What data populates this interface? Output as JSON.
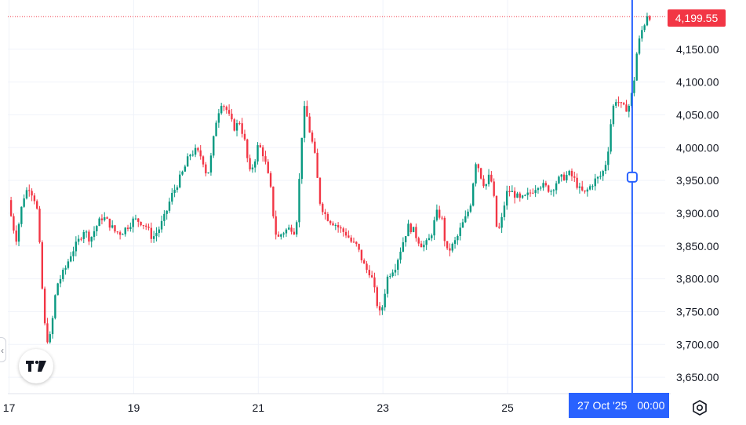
{
  "chart_data": {
    "type": "candlestick",
    "title": "",
    "xlabel": "",
    "ylabel": "",
    "y_range": [
      3625,
      4225
    ],
    "y_ticks": [
      3650,
      3700,
      3750,
      3800,
      3850,
      3900,
      3950,
      4000,
      4050,
      4100,
      4150
    ],
    "y_tick_labels": [
      "3,650.00",
      "3,700.00",
      "3,750.00",
      "3,800.00",
      "3,850.00",
      "3,900.00",
      "3,950.00",
      "4,000.00",
      "4,050.00",
      "4,100.00",
      "4,150.00"
    ],
    "x_tick_labels": [
      "17",
      "19",
      "21",
      "23",
      "25"
    ],
    "x_tick_days": [
      17,
      19,
      21,
      23,
      25
    ],
    "x_range_days": [
      16.98,
      27.53
    ],
    "grid": true,
    "up_color": "#089981",
    "down_color": "#f23645",
    "close_path": [
      [
        16.99,
        3920
      ],
      [
        17.05,
        3885
      ],
      [
        17.12,
        3860
      ],
      [
        17.18,
        3900
      ],
      [
        17.25,
        3930
      ],
      [
        17.32,
        3940
      ],
      [
        17.4,
        3925
      ],
      [
        17.46,
        3900
      ],
      [
        17.52,
        3800
      ],
      [
        17.58,
        3720
      ],
      [
        17.64,
        3700
      ],
      [
        17.7,
        3740
      ],
      [
        17.76,
        3790
      ],
      [
        17.82,
        3800
      ],
      [
        17.9,
        3815
      ],
      [
        18.0,
        3840
      ],
      [
        18.1,
        3855
      ],
      [
        18.2,
        3875
      ],
      [
        18.3,
        3860
      ],
      [
        18.4,
        3880
      ],
      [
        18.5,
        3895
      ],
      [
        18.6,
        3885
      ],
      [
        18.7,
        3872
      ],
      [
        18.8,
        3870
      ],
      [
        18.9,
        3880
      ],
      [
        19.0,
        3890
      ],
      [
        19.1,
        3888
      ],
      [
        19.2,
        3880
      ],
      [
        19.3,
        3862
      ],
      [
        19.4,
        3875
      ],
      [
        19.5,
        3895
      ],
      [
        19.6,
        3925
      ],
      [
        19.7,
        3945
      ],
      [
        19.8,
        3965
      ],
      [
        19.9,
        3990
      ],
      [
        20.0,
        3995
      ],
      [
        20.1,
        3985
      ],
      [
        20.18,
        3955
      ],
      [
        20.25,
        3990
      ],
      [
        20.32,
        4040
      ],
      [
        20.4,
        4070
      ],
      [
        20.48,
        4060
      ],
      [
        20.56,
        4040
      ],
      [
        20.62,
        4030
      ],
      [
        20.7,
        4040
      ],
      [
        20.78,
        4010
      ],
      [
        20.86,
        3960
      ],
      [
        20.94,
        3980
      ],
      [
        21.0,
        4005
      ],
      [
        21.08,
        3990
      ],
      [
        21.14,
        3965
      ],
      [
        21.2,
        3935
      ],
      [
        21.26,
        3880
      ],
      [
        21.3,
        3860
      ],
      [
        21.38,
        3870
      ],
      [
        21.46,
        3875
      ],
      [
        21.54,
        3878
      ],
      [
        21.6,
        3870
      ],
      [
        21.66,
        3955
      ],
      [
        21.72,
        4055
      ],
      [
        21.76,
        4060
      ],
      [
        21.8,
        4035
      ],
      [
        21.86,
        4010
      ],
      [
        21.92,
        3980
      ],
      [
        21.98,
        3920
      ],
      [
        22.06,
        3900
      ],
      [
        22.14,
        3890
      ],
      [
        22.22,
        3885
      ],
      [
        22.32,
        3875
      ],
      [
        22.42,
        3868
      ],
      [
        22.5,
        3855
      ],
      [
        22.58,
        3850
      ],
      [
        22.66,
        3830
      ],
      [
        22.72,
        3815
      ],
      [
        22.8,
        3810
      ],
      [
        22.88,
        3775
      ],
      [
        22.94,
        3745
      ],
      [
        23.0,
        3760
      ],
      [
        23.06,
        3800
      ],
      [
        23.12,
        3810
      ],
      [
        23.2,
        3820
      ],
      [
        23.3,
        3850
      ],
      [
        23.4,
        3880
      ],
      [
        23.48,
        3875
      ],
      [
        23.56,
        3860
      ],
      [
        23.64,
        3850
      ],
      [
        23.72,
        3855
      ],
      [
        23.78,
        3870
      ],
      [
        23.86,
        3900
      ],
      [
        23.94,
        3895
      ],
      [
        24.02,
        3840
      ],
      [
        24.1,
        3848
      ],
      [
        24.18,
        3860
      ],
      [
        24.26,
        3880
      ],
      [
        24.34,
        3895
      ],
      [
        24.42,
        3920
      ],
      [
        24.48,
        3980
      ],
      [
        24.52,
        3975
      ],
      [
        24.56,
        3960
      ],
      [
        24.6,
        3950
      ],
      [
        24.64,
        3940
      ],
      [
        24.7,
        3955
      ],
      [
        24.76,
        3945
      ],
      [
        24.82,
        3880
      ],
      [
        24.88,
        3875
      ],
      [
        24.94,
        3910
      ],
      [
        25.0,
        3935
      ],
      [
        25.1,
        3930
      ],
      [
        25.2,
        3920
      ],
      [
        25.3,
        3925
      ],
      [
        25.4,
        3935
      ],
      [
        25.5,
        3945
      ],
      [
        25.6,
        3940
      ],
      [
        25.7,
        3935
      ],
      [
        25.8,
        3950
      ],
      [
        25.9,
        3955
      ],
      [
        26.0,
        3960
      ],
      [
        26.08,
        3950
      ],
      [
        26.16,
        3935
      ],
      [
        26.24,
        3930
      ],
      [
        26.32,
        3940
      ],
      [
        26.4,
        3950
      ],
      [
        26.48,
        3955
      ],
      [
        26.54,
        3965
      ],
      [
        26.6,
        3985
      ],
      [
        26.66,
        4040
      ],
      [
        26.72,
        4075
      ],
      [
        26.78,
        4070
      ],
      [
        26.84,
        4060
      ],
      [
        26.9,
        4060
      ],
      [
        26.96,
        4065
      ],
      [
        27.0,
        4085
      ],
      [
        27.04,
        4110
      ],
      [
        27.08,
        4150
      ],
      [
        27.12,
        4165
      ],
      [
        27.16,
        4180
      ],
      [
        27.2,
        4190
      ],
      [
        27.24,
        4203
      ],
      [
        27.3,
        4199.55
      ]
    ],
    "last_price": 4199.55,
    "last_price_label": "4,199.55",
    "crosshair_day": 27.0,
    "crosshair_price": 3955,
    "crosshair_time_label": [
      "27 Oct '25",
      "00:00"
    ]
  },
  "logo": {
    "name": "tradingview-logo",
    "text": "TV"
  },
  "icons": {
    "settings": "gear-icon",
    "collapse": "chevron-left-icon"
  }
}
